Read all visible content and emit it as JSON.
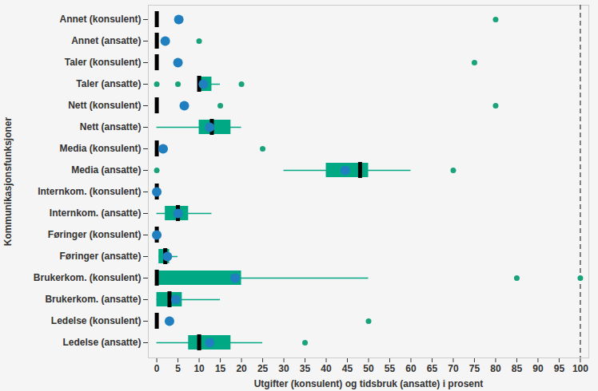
{
  "chart_data": {
    "type": "boxplot",
    "orientation": "horizontal",
    "x_label": "Utgifter (konsulent) og tidsbruk (ansatte) i prosent",
    "y_label": "Kommunikasjonsfunksjoner",
    "xlim": [
      -2,
      102
    ],
    "xticks": [
      0,
      5,
      10,
      15,
      20,
      25,
      30,
      35,
      40,
      45,
      50,
      55,
      60,
      65,
      70,
      75,
      80,
      85,
      90,
      95,
      100
    ],
    "grid": false,
    "reference_line": 100,
    "box_color": "#00a884",
    "median_color": "#000000",
    "mean_color": "#1f7fbf",
    "outlier_color": "#1aa37a",
    "categories": [
      "Annet (konsulent)",
      "Annet (ansatte)",
      "Taler (konsulent)",
      "Taler (ansatte)",
      "Nett (konsulent)",
      "Nett (ansatte)",
      "Media (konsulent)",
      "Media (ansatte)",
      "Internkom. (konsulent)",
      "Internkom. (ansatte)",
      "Føringer (konsulent)",
      "Føringer (ansatte)",
      "Brukerkom. (konsulent)",
      "Brukerkom. (ansatte)",
      "Ledelse (konsulent)",
      "Ledelse (ansatte)"
    ],
    "whisker_low": [
      0,
      0,
      0,
      10,
      0,
      0,
      0,
      30,
      0,
      0,
      0,
      0.5,
      0,
      0,
      0,
      0
    ],
    "q1": [
      0,
      0,
      0,
      10,
      0,
      10,
      0,
      40,
      0,
      2,
      0,
      0.5,
      0,
      0,
      0,
      7.5
    ],
    "median": [
      0,
      0,
      0,
      10,
      0,
      13,
      0,
      48,
      0,
      5,
      0,
      2,
      0,
      3,
      0,
      10
    ],
    "q3": [
      0,
      0.5,
      0,
      13,
      0,
      17.5,
      0,
      50,
      0,
      7.5,
      0,
      3,
      20,
      6,
      0,
      17.5
    ],
    "whisker_high": [
      0,
      0.5,
      0,
      15,
      0,
      20,
      0,
      60,
      0,
      13,
      0,
      5,
      50,
      15,
      0,
      25
    ],
    "mean": [
      5.2,
      2,
      5,
      11,
      6.5,
      12.5,
      1.5,
      44.5,
      0,
      5,
      0,
      2.5,
      18.5,
      4.5,
      3,
      12.5
    ],
    "outliers": [
      [
        80
      ],
      [
        10
      ],
      [
        75
      ],
      [
        0,
        5,
        20
      ],
      [
        15,
        80
      ],
      [],
      [
        25
      ],
      [
        0,
        70
      ],
      [],
      [],
      [],
      [],
      [
        85,
        100
      ],
      [],
      [
        50
      ],
      [
        35
      ]
    ]
  }
}
